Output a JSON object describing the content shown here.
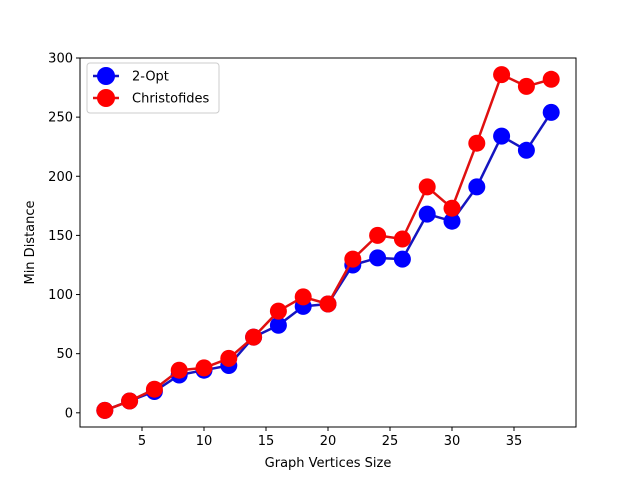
{
  "chart_data": {
    "type": "line",
    "title": "",
    "xlabel": "Graph Vertices Size",
    "ylabel": "Min Distance",
    "xlim": [
      0,
      40
    ],
    "ylim": [
      -12,
      300
    ],
    "x_ticks": [
      5,
      10,
      15,
      20,
      25,
      30,
      35
    ],
    "y_ticks": [
      0,
      50,
      100,
      150,
      200,
      250,
      300
    ],
    "grid": false,
    "legend_position": "top-left",
    "x": [
      2,
      4,
      6,
      8,
      10,
      12,
      14,
      16,
      18,
      20,
      22,
      24,
      26,
      28,
      30,
      32,
      34,
      36,
      38
    ],
    "series": [
      {
        "name": "2-Opt",
        "color": "#0000ff",
        "line_color": "#1515c0",
        "values": [
          2,
          10,
          18,
          32,
          36,
          40,
          64,
          74,
          90,
          92,
          125,
          131,
          130,
          168,
          162,
          191,
          234,
          222,
          254
        ]
      },
      {
        "name": "Christofides",
        "color": "#ff0000",
        "line_color": "#e01010",
        "values": [
          2,
          10,
          20,
          36,
          38,
          46,
          64,
          86,
          98,
          92,
          130,
          150,
          147,
          191,
          173,
          228,
          286,
          276,
          282
        ]
      }
    ]
  }
}
